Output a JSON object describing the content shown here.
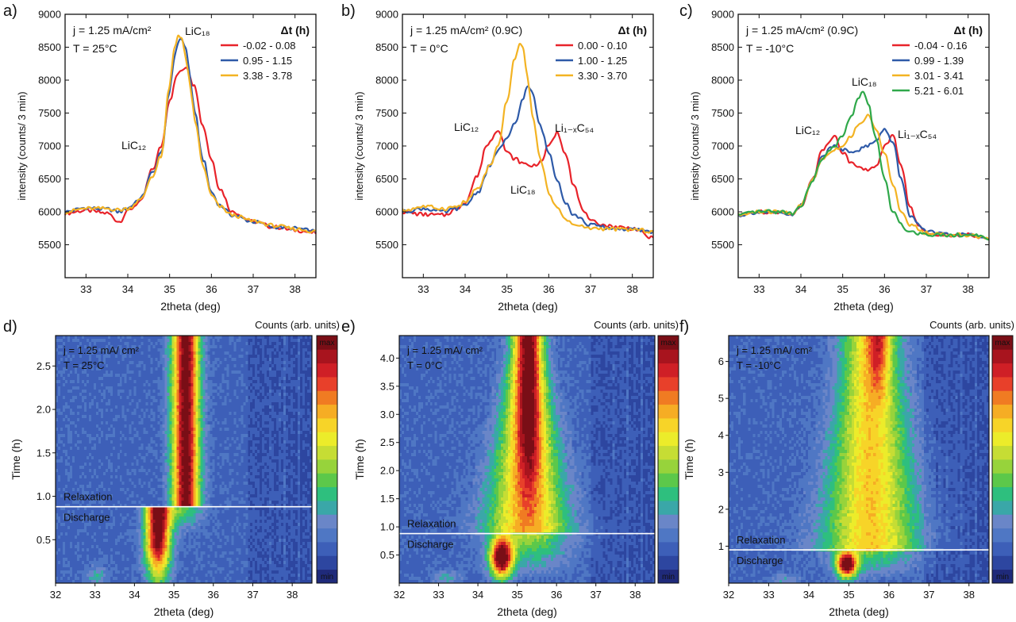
{
  "chart_data": [
    {
      "panel": "a)",
      "type": "line",
      "title": "",
      "xlabel": "2theta (deg)",
      "ylabel": "intensity (counts/ 3 min)",
      "xlim": [
        32.5,
        38.5
      ],
      "ylim": [
        5000,
        9000
      ],
      "xticks": [
        33,
        34,
        35,
        36,
        37,
        38
      ],
      "yticks": [
        5500,
        6000,
        6500,
        7000,
        7500,
        8000,
        8500,
        9000
      ],
      "conditions": [
        "j = 1.25 mA/cm²",
        "T = 25°C"
      ],
      "legend_title": "Δt (h)",
      "legend_position": "top-right",
      "annotations": [
        {
          "text": "LiC₁₈",
          "x": 35.6,
          "y": 8700
        },
        {
          "text": "LiC₁₂",
          "x": 33.8,
          "y": 7100
        }
      ],
      "series": [
        {
          "name": "-0.02 - 0.08",
          "color": "#e8232a",
          "x": [
            32.5,
            33.0,
            33.5,
            33.8,
            34.0,
            34.3,
            34.6,
            34.8,
            35.0,
            35.2,
            35.4,
            35.6,
            35.8,
            36.0,
            36.2,
            36.5,
            37.0,
            37.5,
            38.0,
            38.5
          ],
          "y": [
            5980,
            6020,
            5980,
            5850,
            6020,
            6150,
            6650,
            7000,
            7700,
            8100,
            8200,
            7900,
            7300,
            6800,
            6350,
            6000,
            5850,
            5770,
            5720,
            5680
          ]
        },
        {
          "name": "0.95 - 1.15",
          "color": "#2e5aa8",
          "x": [
            32.5,
            33.0,
            33.5,
            33.8,
            34.0,
            34.3,
            34.6,
            34.8,
            35.0,
            35.1,
            35.2,
            35.3,
            35.4,
            35.5,
            35.6,
            35.8,
            36.0,
            36.2,
            36.5,
            37.0,
            37.5,
            38.0,
            38.5
          ],
          "y": [
            6000,
            6060,
            6040,
            6000,
            6060,
            6200,
            6600,
            6900,
            7800,
            8300,
            8580,
            8620,
            8450,
            8000,
            7500,
            6800,
            6300,
            6100,
            5950,
            5850,
            5770,
            5750,
            5700
          ]
        },
        {
          "name": "3.38 - 3.78",
          "color": "#f3b323",
          "x": [
            32.5,
            33.0,
            33.5,
            33.8,
            34.0,
            34.3,
            34.6,
            34.8,
            35.0,
            35.1,
            35.2,
            35.3,
            35.4,
            35.5,
            35.6,
            35.8,
            36.0,
            36.2,
            36.5,
            37.0,
            37.5,
            38.0,
            38.5
          ],
          "y": [
            6000,
            6050,
            6050,
            6030,
            6050,
            6180,
            6550,
            6850,
            7900,
            8450,
            8680,
            8600,
            8300,
            7850,
            7400,
            6700,
            6250,
            6080,
            5950,
            5860,
            5790,
            5740,
            5700
          ]
        }
      ]
    },
    {
      "panel": "b)",
      "type": "line",
      "title": "",
      "xlabel": "2theta (deg)",
      "ylabel": "intensity (counts/ 3 min)",
      "xlim": [
        32.5,
        38.5
      ],
      "ylim": [
        5000,
        9000
      ],
      "xticks": [
        33,
        34,
        35,
        36,
        37,
        38
      ],
      "yticks": [
        5500,
        6000,
        6500,
        7000,
        7500,
        8000,
        8500,
        9000
      ],
      "conditions": [
        "j = 1.25 mA/cm² (0.9C)",
        "T = 0°C"
      ],
      "legend_title": "Δt (h)",
      "legend_position": "top-right",
      "annotations": [
        {
          "text": "LiC₁₂",
          "x": 33.7,
          "y": 7350
        },
        {
          "text": "Li₁₋ₓC₅₄",
          "x": 36.5,
          "y": 7300
        },
        {
          "text": "LiC₁₈",
          "x": 35.2,
          "y": 6450
        }
      ],
      "series": [
        {
          "name": "0.00 - 0.10",
          "color": "#e8232a",
          "x": [
            32.5,
            33.0,
            33.5,
            33.8,
            34.0,
            34.3,
            34.5,
            34.8,
            35.0,
            35.2,
            35.4,
            35.6,
            35.8,
            36.0,
            36.2,
            36.4,
            36.6,
            36.8,
            37.0,
            37.5,
            38.0,
            38.5
          ],
          "y": [
            6000,
            5960,
            5950,
            6050,
            6150,
            6550,
            7000,
            7250,
            6900,
            6800,
            6730,
            6700,
            6750,
            7000,
            7200,
            6900,
            6400,
            6050,
            5850,
            5780,
            5750,
            5600
          ]
        },
        {
          "name": "1.00 - 1.25",
          "color": "#2e5aa8",
          "x": [
            32.5,
            33.0,
            33.5,
            33.8,
            34.0,
            34.3,
            34.6,
            34.8,
            35.0,
            35.2,
            35.4,
            35.5,
            35.6,
            35.8,
            36.0,
            36.2,
            36.4,
            36.6,
            37.0,
            37.5,
            38.0,
            38.5
          ],
          "y": [
            6000,
            6050,
            6000,
            6050,
            6100,
            6300,
            6700,
            6950,
            7100,
            7350,
            7750,
            7920,
            7800,
            7300,
            6900,
            6500,
            6150,
            5950,
            5800,
            5750,
            5730,
            5700
          ]
        },
        {
          "name": "3.30 - 3.70",
          "color": "#f3b323",
          "x": [
            32.5,
            33.0,
            33.5,
            33.8,
            34.0,
            34.3,
            34.6,
            34.8,
            35.0,
            35.2,
            35.3,
            35.4,
            35.5,
            35.6,
            35.8,
            36.0,
            36.2,
            36.4,
            36.6,
            37.0,
            37.5,
            38.0,
            38.5
          ],
          "y": [
            6020,
            6080,
            6050,
            6080,
            6150,
            6350,
            6700,
            7000,
            7700,
            8350,
            8550,
            8450,
            8000,
            7500,
            6800,
            6300,
            6050,
            5900,
            5800,
            5750,
            5740,
            5730,
            5700
          ]
        }
      ]
    },
    {
      "panel": "c)",
      "type": "line",
      "title": "",
      "xlabel": "2theta (deg)",
      "ylabel": "intensity (counts/ 3 min)",
      "xlim": [
        32.5,
        38.5
      ],
      "ylim": [
        5000,
        9000
      ],
      "xticks": [
        33,
        34,
        35,
        36,
        37,
        38
      ],
      "yticks": [
        5500,
        6000,
        6500,
        7000,
        7500,
        8000,
        8500,
        9000
      ],
      "conditions": [
        "j = 1.25 mA/cm² (0.9C)",
        "T = -10°C"
      ],
      "legend_title": "Δt (h)",
      "legend_position": "top-right",
      "annotations": [
        {
          "text": "LiC₁₈",
          "x": 35.6,
          "y": 8000
        },
        {
          "text": "LiC₁₂",
          "x": 33.7,
          "y": 7300
        },
        {
          "text": "Li₁₋ₓC₅₄",
          "x": 36.7,
          "y": 7200
        }
      ],
      "series": [
        {
          "name": "-0.04 - 0.16",
          "color": "#e8232a",
          "x": [
            32.5,
            33.0,
            33.5,
            33.8,
            34.0,
            34.3,
            34.5,
            34.8,
            35.0,
            35.2,
            35.4,
            35.6,
            35.8,
            36.0,
            36.2,
            36.4,
            36.6,
            36.8,
            37.0,
            37.5,
            38.0,
            38.5
          ],
          "y": [
            5950,
            6000,
            6000,
            5950,
            6100,
            6500,
            6950,
            7150,
            6900,
            6750,
            6700,
            6620,
            6700,
            7000,
            7150,
            6700,
            6100,
            5800,
            5680,
            5650,
            5650,
            5580
          ]
        },
        {
          "name": "0.99 - 1.39",
          "color": "#2e5aa8",
          "x": [
            32.5,
            33.0,
            33.5,
            33.8,
            34.0,
            34.3,
            34.5,
            34.8,
            35.0,
            35.2,
            35.4,
            35.6,
            35.8,
            36.0,
            36.2,
            36.4,
            36.6,
            37.0,
            37.5,
            38.0,
            38.5
          ],
          "y": [
            5950,
            6000,
            5980,
            5950,
            6100,
            6500,
            6850,
            7000,
            6950,
            6920,
            6950,
            7000,
            7100,
            7250,
            7050,
            6500,
            5950,
            5700,
            5650,
            5650,
            5600
          ]
        },
        {
          "name": "3.01 - 3.41",
          "color": "#f3b323",
          "x": [
            32.5,
            33.0,
            33.5,
            33.8,
            34.0,
            34.3,
            34.5,
            34.8,
            35.0,
            35.2,
            35.4,
            35.6,
            35.8,
            36.0,
            36.2,
            36.4,
            36.6,
            37.0,
            37.5,
            38.0,
            38.5
          ],
          "y": [
            5950,
            6000,
            6000,
            5980,
            6100,
            6500,
            6800,
            6950,
            7000,
            7150,
            7350,
            7450,
            7250,
            6900,
            6400,
            6000,
            5800,
            5680,
            5650,
            5650,
            5600
          ]
        },
        {
          "name": "5.21 - 6.01",
          "color": "#2fa84a",
          "x": [
            32.5,
            33.0,
            33.5,
            33.8,
            34.0,
            34.3,
            34.5,
            34.8,
            35.0,
            35.2,
            35.4,
            35.5,
            35.6,
            35.8,
            36.0,
            36.2,
            36.4,
            36.6,
            37.0,
            37.5,
            38.0,
            38.5
          ],
          "y": [
            5950,
            6000,
            6000,
            5980,
            6100,
            6500,
            6800,
            7000,
            7150,
            7450,
            7750,
            7820,
            7650,
            7100,
            6500,
            6000,
            5800,
            5700,
            5660,
            5650,
            5650,
            5600
          ]
        }
      ]
    },
    {
      "panel": "d)",
      "type": "heatmap",
      "title": "",
      "xlabel": "2theta (deg)",
      "ylabel": "Time (h)",
      "xlim": [
        32,
        38.5
      ],
      "ylim": [
        0,
        2.85
      ],
      "xticks": [
        32,
        33,
        34,
        35,
        36,
        37,
        38
      ],
      "yticks": [
        0.5,
        1.0,
        1.5,
        2.0,
        2.5
      ],
      "ytick_labels": [
        "0.5",
        "1.0",
        "1.5",
        "2.0",
        "2.5"
      ],
      "conditions": [
        "j = 1.25 mA/ cm²",
        "T = 25°C"
      ],
      "colorbar_title": "Counts (arb. units)",
      "colorbar_labels": [
        "max",
        "min"
      ],
      "divider_time": 0.88,
      "phase_labels": [
        "Relaxation",
        "Discharge"
      ],
      "features": {
        "discharge_peak": [
          34.6,
          0.5
        ],
        "relaxation_peak_x": 35.3,
        "weak_feature": [
          33.0,
          0.08
        ]
      }
    },
    {
      "panel": "e)",
      "type": "heatmap",
      "title": "",
      "xlabel": "2theta (deg)",
      "ylabel": "Time (h)",
      "xlim": [
        32,
        38.5
      ],
      "ylim": [
        0,
        4.4
      ],
      "xticks": [
        32,
        33,
        34,
        35,
        36,
        37,
        38
      ],
      "yticks": [
        0.5,
        1.0,
        1.5,
        2.0,
        2.5,
        3.0,
        3.5,
        4.0
      ],
      "ytick_labels": [
        "0.5",
        "1.0",
        "1.5",
        "2.0",
        "2.5",
        "3.0",
        "3.5",
        "4.0"
      ],
      "conditions": [
        "j = 1.25 mA/ cm²",
        "T = 0°C"
      ],
      "colorbar_title": "Counts (arb. units)",
      "colorbar_labels": [
        "max",
        "min"
      ],
      "divider_time": 0.88,
      "phase_labels": [
        "Relaxation",
        "Discharge"
      ],
      "features": {
        "discharge_peak": [
          34.6,
          0.45
        ],
        "relaxation_peak_x": 35.3,
        "weak_feature": [
          33.2,
          0.1
        ]
      }
    },
    {
      "panel": "f)",
      "type": "heatmap",
      "title": "",
      "xlabel": "2theta (deg)",
      "ylabel": "Time (h)",
      "xlim": [
        32,
        38.5
      ],
      "ylim": [
        0,
        6.7
      ],
      "xticks": [
        32,
        33,
        34,
        35,
        36,
        37,
        38
      ],
      "yticks": [
        1,
        2,
        3,
        4,
        5,
        6
      ],
      "ytick_labels": [
        "1",
        "2",
        "3",
        "4",
        "5",
        "6"
      ],
      "conditions": [
        "j = 1.25 mA/ cm²",
        "T = -10°C"
      ],
      "colorbar_title": "Counts (arb. units)",
      "colorbar_labels": [
        "max",
        "min"
      ],
      "divider_time": 0.9,
      "phase_labels": [
        "Relaxation",
        "Discharge"
      ],
      "features": {
        "discharge_peak": [
          34.9,
          0.55
        ],
        "relaxation_peak_x": 35.6,
        "weak_feature": [
          33.4,
          0.1
        ]
      }
    }
  ],
  "colormap": [
    "#1f2a7a",
    "#2d46a0",
    "#3d5fb8",
    "#4f77c4",
    "#6a86c8",
    "#3aa7a8",
    "#2ebf7e",
    "#5cc84a",
    "#97d33b",
    "#c6dd34",
    "#ecec2a",
    "#f7d428",
    "#f6ad24",
    "#f07b22",
    "#e8402a",
    "#cf1f26",
    "#a8141e",
    "#7a0e16"
  ],
  "axis_color": "#111111"
}
